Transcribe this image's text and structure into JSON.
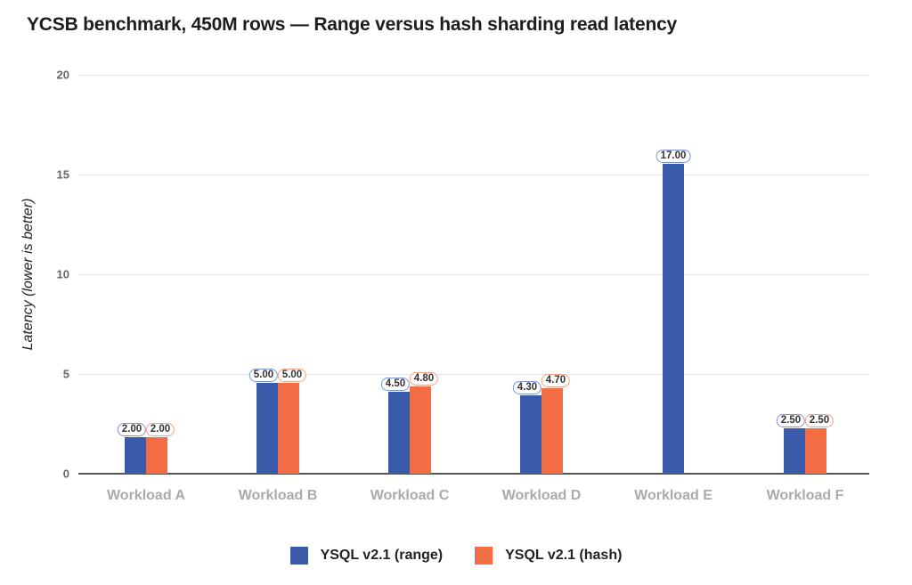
{
  "chart_data": {
    "type": "bar",
    "title": "YCSB benchmark, 450M rows — Range versus hash sharding read latency",
    "xlabel": "",
    "ylabel": "Latency (lower is better)",
    "ylim": [
      0,
      20
    ],
    "yticks": [
      "0",
      "5",
      "10",
      "15",
      "20"
    ],
    "grid": true,
    "legend_position": "bottom",
    "categories": [
      "Workload A",
      "Workload B",
      "Workload C",
      "Workload D",
      "Workload E",
      "Workload F"
    ],
    "series": [
      {
        "name": "YSQL v2.1 (range)",
        "color": "#3a5ba9",
        "values": [
          2.0,
          5.0,
          4.5,
          4.3,
          17.0,
          2.5
        ],
        "labels": [
          "2.00",
          "5.00",
          "4.50",
          "4.30",
          "17.00",
          "2.50"
        ]
      },
      {
        "name": "YSQL v2.1 (hash)",
        "color": "#f26d44",
        "values": [
          2.0,
          5.0,
          4.8,
          4.7,
          null,
          2.5
        ],
        "labels": [
          "2.00",
          "5.00",
          "4.80",
          "4.70",
          "",
          "2.50"
        ]
      }
    ]
  },
  "colors": {
    "range_badge_border": "#7d93d4",
    "hash_badge_border": "#f4a184"
  }
}
